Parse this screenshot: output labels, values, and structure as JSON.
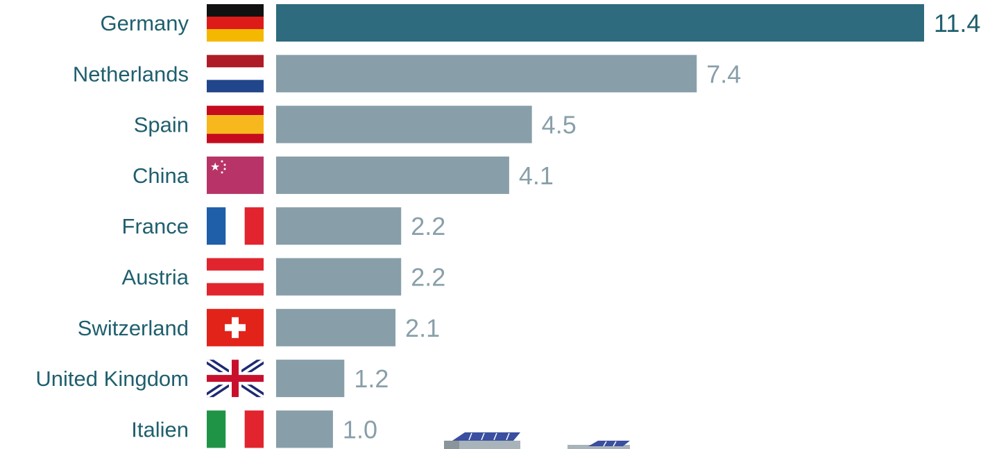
{
  "chart_data": {
    "type": "bar",
    "orientation": "horizontal",
    "categories": [
      "Germany",
      "Netherlands",
      "Spain",
      "China",
      "France",
      "Austria",
      "Switzerland",
      "United Kingdom",
      "Italien"
    ],
    "values": [
      11.4,
      7.4,
      4.5,
      4.1,
      2.2,
      2.2,
      2.1,
      1.2,
      1.0
    ],
    "value_labels": [
      "11.4",
      "7.4",
      "4.5",
      "4.1",
      "2.2",
      "2.2",
      "2.1",
      "1.2",
      "1.0"
    ],
    "flags": [
      "germany-flag-icon",
      "netherlands-flag-icon",
      "spain-flag-icon",
      "china-flag-icon",
      "france-flag-icon",
      "austria-flag-icon",
      "switzerland-flag-icon",
      "united-kingdom-flag-icon",
      "italy-flag-icon"
    ],
    "highlight_index": 0,
    "xlim": [
      0,
      11.4
    ],
    "grid": false,
    "legend": "none"
  },
  "colors": {
    "highlight_bar": "#2e6b7e",
    "bar": "#889faa",
    "highlight_value": "#1f5f6e",
    "value": "#889faa",
    "label": "#1f5f6e"
  },
  "decorations": [
    "solar-house-icon",
    "solar-house-icon"
  ]
}
